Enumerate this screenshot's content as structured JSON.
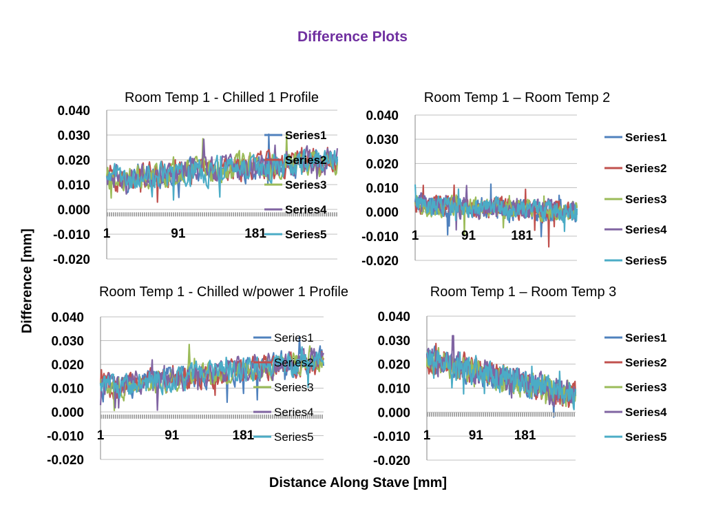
{
  "title": "Difference  Plots",
  "ylabel": "Difference [mm]",
  "xlabel": "Distance Along Stave [mm]",
  "colors": {
    "title": "#7030a0",
    "series": [
      "#4f81bd",
      "#c0504d",
      "#9bbb59",
      "#8064a2",
      "#4bacc6"
    ]
  },
  "chart_data": [
    {
      "type": "line",
      "title": "Room Temp  1 - Chilled 1 Profile",
      "ylim": [
        -0.02,
        0.04
      ],
      "yticks": [
        "0.040",
        "0.030",
        "0.020",
        "0.010",
        "0.000",
        "-0.010",
        "-0.020"
      ],
      "xticks": [
        "1",
        "91",
        "181"
      ],
      "x_range": [
        1,
        260
      ],
      "legend": [
        "Series1",
        "Series2",
        "Series3",
        "Series4",
        "Series5"
      ],
      "legend_position": "right (overlapping plot)",
      "series_trend": {
        "start": 0.012,
        "end": 0.02,
        "amplitude": 0.008
      },
      "flat_series_value": -0.002
    },
    {
      "type": "line",
      "title": "Room Temp  1 – Room  Temp 2",
      "ylim": [
        -0.02,
        0.04
      ],
      "yticks": [
        "0.040",
        "0.030",
        "0.020",
        "0.010",
        "0.000",
        "-0.010",
        "-0.020"
      ],
      "xticks": [
        "1",
        "91",
        "181"
      ],
      "x_range": [
        1,
        300
      ],
      "legend": [
        "Series1",
        "Series2",
        "Series3",
        "Series4",
        "Series5"
      ],
      "legend_position": "right",
      "series_trend": {
        "start": 0.003,
        "end": 0.0,
        "amplitude": 0.006
      },
      "flat_series_value": null
    },
    {
      "type": "line",
      "title": "Room Temp  1 - Chilled  w/power 1 Profile",
      "ylim": [
        -0.02,
        0.04
      ],
      "yticks": [
        "0.040",
        "0.030",
        "0.020",
        "0.010",
        "0.000",
        "-0.010",
        "-0.020"
      ],
      "xticks": [
        "1",
        "91",
        "181"
      ],
      "x_range": [
        1,
        260
      ],
      "legend": [
        "Series1",
        "Series2",
        "Series3",
        "Series4",
        "Series5"
      ],
      "legend_position": "right (overlapping plot)",
      "series_trend": {
        "start": 0.01,
        "end": 0.022,
        "amplitude": 0.008
      },
      "flat_series_value": -0.002
    },
    {
      "type": "line",
      "title": "Room Temp  1 – Room  Temp 3",
      "ylim": [
        -0.02,
        0.04
      ],
      "yticks": [
        "0.040",
        "0.030",
        "0.020",
        "0.010",
        "0.000",
        "-0.010",
        "-0.020"
      ],
      "xticks": [
        "1",
        "91",
        "181"
      ],
      "x_range": [
        1,
        280
      ],
      "legend": [
        "Series1",
        "Series2",
        "Series3",
        "Series4",
        "Series5"
      ],
      "legend_position": "right",
      "series_trend": {
        "start": 0.022,
        "end": 0.007,
        "amplitude": 0.008
      },
      "flat_series_value": -0.001
    }
  ]
}
